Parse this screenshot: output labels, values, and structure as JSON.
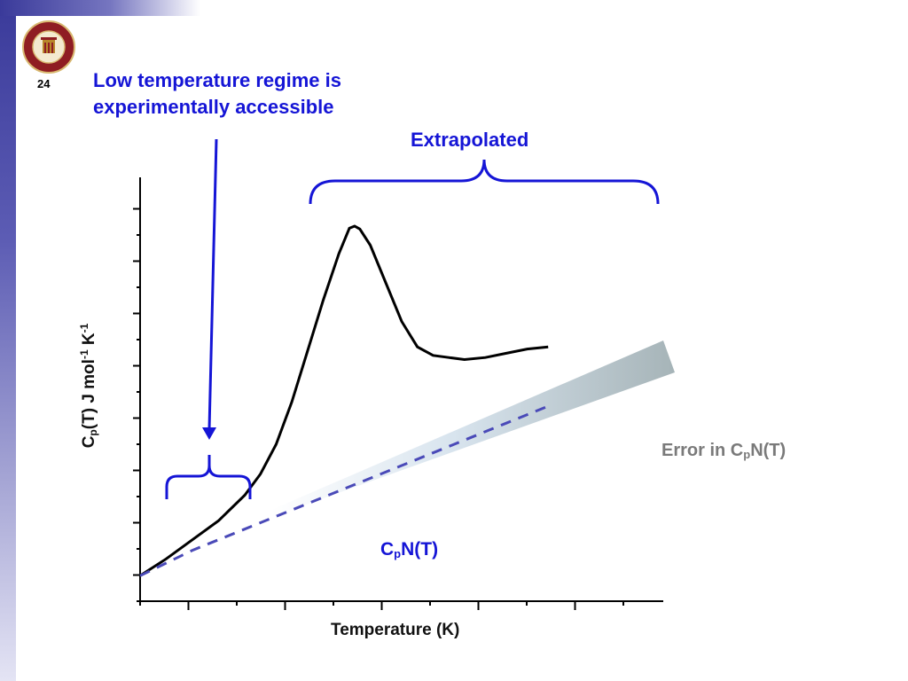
{
  "slide": {
    "number": "24",
    "heading_lines": [
      "Low temperature regime is",
      "experimentally accessible"
    ],
    "extrapolated_label": "Extrapolated",
    "error_label": {
      "prefix": "Error in C",
      "sub": "p",
      "suffix": "N(T)"
    },
    "normal_label": {
      "prefix": "C",
      "sub": "p",
      "suffix": "N(T)"
    },
    "logo": "university-seal-icon",
    "colors": {
      "accent": "#1515d6",
      "error_band": "#a6b4b8",
      "curve": "#000000",
      "dashed": "#4a4ab8",
      "band_gradient_start": "#3a3a9a"
    }
  },
  "chart_data": {
    "type": "line",
    "xlabel": "Temperature (K)",
    "ylabel": {
      "c": "C",
      "sub": "p",
      "rest": "(T) J mol",
      "exp1": "-1",
      "k": " K",
      "exp2": "-1"
    },
    "x_tick_count": 11,
    "y_tick_count": 16,
    "series": [
      {
        "style": "solid",
        "values": [
          [
            0.0,
            0.06
          ],
          [
            0.05,
            0.1
          ],
          [
            0.1,
            0.145
          ],
          [
            0.15,
            0.19
          ],
          [
            0.2,
            0.25
          ],
          [
            0.23,
            0.3
          ],
          [
            0.26,
            0.37
          ],
          [
            0.29,
            0.47
          ],
          [
            0.32,
            0.59
          ],
          [
            0.35,
            0.71
          ],
          [
            0.38,
            0.82
          ],
          [
            0.4,
            0.88
          ],
          [
            0.41,
            0.885
          ],
          [
            0.42,
            0.878
          ],
          [
            0.44,
            0.84
          ],
          [
            0.47,
            0.75
          ],
          [
            0.5,
            0.66
          ],
          [
            0.53,
            0.6
          ],
          [
            0.56,
            0.58
          ],
          [
            0.59,
            0.575
          ],
          [
            0.62,
            0.57
          ],
          [
            0.66,
            0.575
          ],
          [
            0.7,
            0.585
          ],
          [
            0.74,
            0.595
          ],
          [
            0.78,
            0.6
          ]
        ]
      },
      {
        "style": "dashed",
        "values": [
          [
            0.0,
            0.06
          ],
          [
            0.1,
            0.12
          ],
          [
            0.2,
            0.17
          ],
          [
            0.3,
            0.22
          ],
          [
            0.4,
            0.27
          ],
          [
            0.5,
            0.32
          ],
          [
            0.6,
            0.37
          ],
          [
            0.7,
            0.42
          ],
          [
            0.78,
            0.46
          ]
        ]
      }
    ],
    "error_band": {
      "from_x": 0.3,
      "to_x": 0.78
    }
  }
}
